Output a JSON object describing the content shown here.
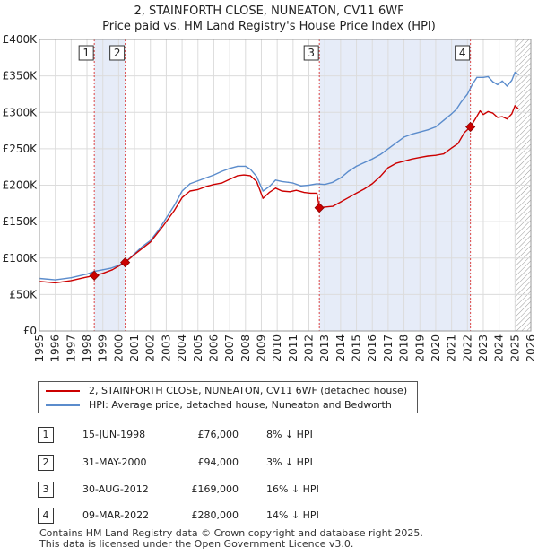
{
  "chart_data": {
    "type": "line",
    "title": "2, STAINFORTH CLOSE, NUNEATON, CV11 6WF",
    "subtitle": "Price paid vs. HM Land Registry's House Price Index (HPI)",
    "xlabel": "",
    "ylabel": "",
    "xlim": [
      1995,
      2026
    ],
    "ylim": [
      0,
      400000
    ],
    "grid": true,
    "x_ticks": [
      1995,
      1996,
      1997,
      1998,
      1999,
      2000,
      2001,
      2002,
      2003,
      2004,
      2005,
      2006,
      2007,
      2008,
      2009,
      2010,
      2011,
      2012,
      2013,
      2014,
      2015,
      2016,
      2017,
      2018,
      2019,
      2020,
      2021,
      2022,
      2023,
      2024,
      2025,
      2026
    ],
    "x_tick_labels": [
      "1995",
      "1996",
      "1997",
      "1998",
      "1999",
      "2000",
      "2001",
      "2002",
      "2003",
      "2004",
      "2005",
      "2006",
      "2007",
      "2008",
      "2009",
      "2010",
      "2011",
      "2012",
      "2013",
      "2014",
      "2015",
      "2016",
      "2017",
      "2018",
      "2019",
      "2020",
      "2021",
      "2022",
      "2023",
      "2024",
      "2025",
      "2026"
    ],
    "y_ticks": [
      0,
      50000,
      100000,
      150000,
      200000,
      250000,
      300000,
      350000,
      400000
    ],
    "y_tick_labels": [
      "£0",
      "£50K",
      "£100K",
      "£150K",
      "£200K",
      "£250K",
      "£300K",
      "£350K",
      "£400K"
    ],
    "series": [
      {
        "name": "2, STAINFORTH CLOSE, NUNEATON, CV11 6WF (detached house)",
        "color": "#cc0000",
        "x": [
          1995.0,
          1996.0,
          1997.0,
          1997.8,
          1998.46,
          1999.0,
          1999.6,
          2000.41,
          2001.0,
          2002.0,
          2002.8,
          2003.5,
          2004.0,
          2004.5,
          2005.0,
          2005.5,
          2006.0,
          2006.5,
          2007.0,
          2007.5,
          2007.9,
          2008.3,
          2008.7,
          2009.1,
          2009.5,
          2009.9,
          2010.3,
          2010.8,
          2011.2,
          2011.7,
          2012.1,
          2012.5,
          2012.66,
          2013.0,
          2013.5,
          2014.0,
          2014.5,
          2015.0,
          2015.5,
          2016.0,
          2016.5,
          2017.0,
          2017.5,
          2018.0,
          2018.5,
          2019.0,
          2019.5,
          2020.0,
          2020.5,
          2021.0,
          2021.4,
          2021.8,
          2022.19,
          2022.5,
          2022.8,
          2023.0,
          2023.3,
          2023.6,
          2023.9,
          2024.2,
          2024.5,
          2024.8,
          2025.0,
          2025.2
        ],
        "y": [
          68000,
          66000,
          69000,
          73000,
          76000,
          79000,
          84000,
          94000,
          105000,
          122000,
          144000,
          165000,
          183000,
          192000,
          194000,
          198000,
          201000,
          203000,
          208000,
          213000,
          214000,
          213000,
          205000,
          182000,
          190000,
          196000,
          192000,
          191000,
          193000,
          190000,
          189000,
          189000,
          169000,
          170000,
          171000,
          177000,
          183000,
          189000,
          195000,
          202000,
          212000,
          224000,
          230000,
          233000,
          236000,
          238000,
          240000,
          241000,
          243000,
          251000,
          257000,
          272000,
          280000,
          291000,
          302000,
          297000,
          301000,
          299000,
          293000,
          294000,
          291000,
          298000,
          309000,
          305000
        ]
      },
      {
        "name": "HPI: Average price, detached house, Nuneaton and Bedworth",
        "color": "#5b8ccc",
        "x": [
          1995.0,
          1996.0,
          1997.0,
          1998.0,
          1998.5,
          1999.0,
          1999.5,
          2000.0,
          2000.5,
          2001.0,
          2001.5,
          2002.0,
          2002.5,
          2003.0,
          2003.5,
          2004.0,
          2004.5,
          2005.0,
          2005.5,
          2006.0,
          2006.5,
          2007.0,
          2007.5,
          2008.0,
          2008.3,
          2008.7,
          2009.1,
          2009.5,
          2009.9,
          2010.3,
          2010.7,
          2011.0,
          2011.5,
          2012.0,
          2012.5,
          2013.0,
          2013.5,
          2014.0,
          2014.5,
          2015.0,
          2015.5,
          2016.0,
          2016.5,
          2017.0,
          2017.5,
          2018.0,
          2018.5,
          2019.0,
          2019.5,
          2020.0,
          2020.5,
          2021.0,
          2021.3,
          2021.6,
          2022.0,
          2022.3,
          2022.6,
          2023.0,
          2023.3,
          2023.6,
          2023.9,
          2024.2,
          2024.5,
          2024.8,
          2025.0,
          2025.2
        ],
        "y": [
          72000,
          70000,
          73000,
          78000,
          82000,
          84000,
          86000,
          90000,
          96000,
          106000,
          116000,
          124000,
          138000,
          155000,
          172000,
          192000,
          202000,
          206000,
          210000,
          214000,
          219000,
          223000,
          226000,
          226000,
          222000,
          212000,
          192000,
          198000,
          207000,
          205000,
          204000,
          203000,
          199000,
          200000,
          202000,
          201000,
          204000,
          210000,
          219000,
          226000,
          231000,
          236000,
          242000,
          250000,
          258000,
          266000,
          270000,
          273000,
          276000,
          280000,
          289000,
          298000,
          304000,
          314000,
          325000,
          338000,
          348000,
          348000,
          349000,
          342000,
          338000,
          343000,
          336000,
          344000,
          355000,
          352000
        ]
      }
    ],
    "annotations": [
      {
        "label": "1",
        "x": 1998.46,
        "y": 76000
      },
      {
        "label": "2",
        "x": 2000.41,
        "y": 94000
      },
      {
        "label": "3",
        "x": 2012.66,
        "y": 169000
      },
      {
        "label": "4",
        "x": 2022.19,
        "y": 280000
      }
    ],
    "shaded_ranges": [
      [
        1998.46,
        2000.41
      ],
      [
        2012.66,
        2022.19
      ]
    ],
    "hatched_range": [
      2025.0,
      2026.0
    ]
  },
  "legend": {
    "items": [
      {
        "label": "2, STAINFORTH CLOSE, NUNEATON, CV11 6WF (detached house)",
        "color": "#cc0000"
      },
      {
        "label": "HPI: Average price, detached house, Nuneaton and Bedworth",
        "color": "#5b8ccc"
      }
    ]
  },
  "transactions": [
    {
      "num": "1",
      "date": "15-JUN-1998",
      "price": "£76,000",
      "hpi": "8% ↓ HPI"
    },
    {
      "num": "2",
      "date": "31-MAY-2000",
      "price": "£94,000",
      "hpi": "3% ↓ HPI"
    },
    {
      "num": "3",
      "date": "30-AUG-2012",
      "price": "£169,000",
      "hpi": "16% ↓ HPI"
    },
    {
      "num": "4",
      "date": "09-MAR-2022",
      "price": "£280,000",
      "hpi": "14% ↓ HPI"
    }
  ],
  "footer": {
    "line1": "Contains HM Land Registry data © Crown copyright and database right 2025.",
    "line2": "This data is licensed under the Open Government Licence v3.0."
  }
}
